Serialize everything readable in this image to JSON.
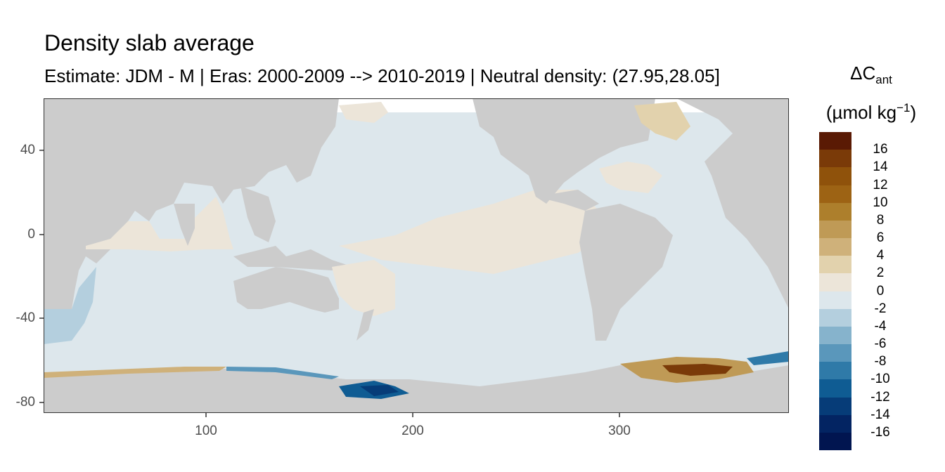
{
  "title": "Density slab average",
  "subtitle": "Estimate: JDM - M | Eras: 2000-2009 --> 2010-2019 | Neutral density: (27.95,28.05]",
  "legend": {
    "title_main": "ΔC",
    "title_sub": "ant",
    "unit_text": "(µmol kg",
    "unit_sup": "−1",
    "unit_close": ")",
    "labels": [
      "16",
      "14",
      "12",
      "10",
      "8",
      "6",
      "4",
      "2",
      "0",
      "-2",
      "-4",
      "-6",
      "-8",
      "-10",
      "-12",
      "-14",
      "-16"
    ],
    "colors": [
      "#5a1a04",
      "#7a3a08",
      "#8f520b",
      "#9d6314",
      "#ad7f2c",
      "#bf9a56",
      "#cfb17a",
      "#e2d2ad",
      "#ece5d9",
      "#dde7ec",
      "#b4cfde",
      "#86b3cc",
      "#5a97bb",
      "#2f7aa8",
      "#0f5c93",
      "#063c78",
      "#032462",
      "#011550"
    ]
  },
  "chart_data": {
    "type": "heatmap",
    "title": "Density slab average",
    "subtitle": "Estimate: JDM - M | Eras: 2000-2009 --> 2010-2019 | Neutral density: (27.95,28.05]",
    "xlim": [
      20,
      380
    ],
    "ylim": [
      -85,
      65
    ],
    "x_ticks": [
      "100",
      "200",
      "300"
    ],
    "y_ticks": [
      "40",
      "0",
      "-40",
      "-80"
    ],
    "land_color": "#cccccc",
    "no_data_color": "#ffffff",
    "color_scale_min": -16,
    "color_scale_max": 16,
    "regions": [
      {
        "region": "Pacific / Southern Ocean bulk",
        "value": -1
      },
      {
        "region": "Equatorial Pacific",
        "value": 1
      },
      {
        "region": "Arabian Sea / Bay of Bengal",
        "value": 1
      },
      {
        "region": "Southwest Indian Ocean",
        "value": -3
      },
      {
        "region": "Ross Sea",
        "value": -12
      },
      {
        "region": "Weddell Sea",
        "value": 13
      },
      {
        "region": "North Atlantic",
        "value": 3
      }
    ]
  }
}
